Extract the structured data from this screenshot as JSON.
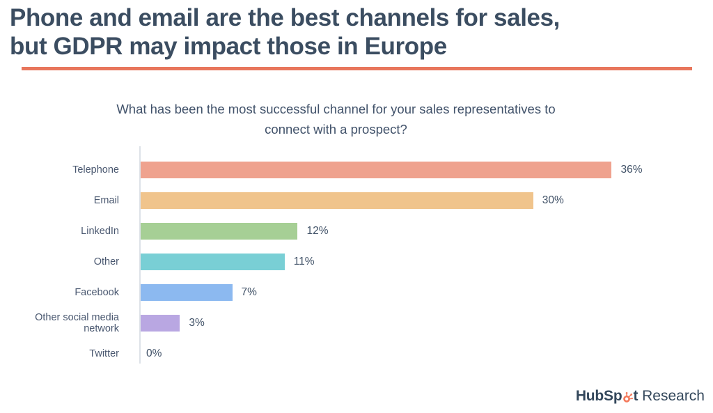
{
  "header": {
    "title_line1": "Phone and email are the best channels for sales,",
    "title_line2": "but GDPR may impact those in Europe",
    "accent_color": "#E8765C"
  },
  "chart_data": {
    "type": "bar",
    "orientation": "horizontal",
    "title": "What has been the most successful channel for your sales representatives to connect with a prospect?",
    "title_line1": "What has been the most successful channel for your sales representatives to",
    "title_line2": "connect with a prospect?",
    "categories": [
      "Telephone",
      "Email",
      "LinkedIn",
      "Other",
      "Facebook",
      "Other social media network",
      "Twitter"
    ],
    "values": [
      36,
      30,
      12,
      11,
      7,
      3,
      0
    ],
    "value_labels": [
      "36%",
      "30%",
      "12%",
      "11%",
      "7%",
      "3%",
      "0%"
    ],
    "bar_colors": [
      "#EFA28E",
      "#F0C48C",
      "#A6CF95",
      "#79CFD5",
      "#8CB9F0",
      "#B9A7E2",
      null
    ],
    "unit": "%",
    "xlabel": "",
    "ylabel": "",
    "xlim": [
      0,
      43
    ],
    "grid": false,
    "legend": false,
    "axis_color": "#DDE2E8"
  },
  "footer": {
    "brand_part1": "HubSp",
    "brand_part2": "t",
    "brand_suffix": " Research",
    "sprocket_color": "#F4795B"
  }
}
